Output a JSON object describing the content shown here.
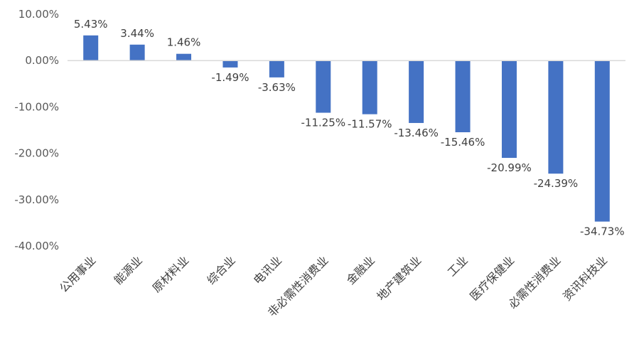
{
  "chart_data": {
    "type": "bar",
    "categories": [
      "公用事业",
      "能源业",
      "原材料业",
      "综合业",
      "电讯业",
      "非必需性消费业",
      "金融业",
      "地产建筑业",
      "工业",
      "医疗保健业",
      "必需性消费业",
      "资讯科技业"
    ],
    "values": [
      5.43,
      3.44,
      1.46,
      -1.49,
      -3.63,
      -11.25,
      -11.57,
      -13.46,
      -15.46,
      -20.99,
      -24.39,
      -34.73
    ],
    "data_labels": [
      "5.43%",
      "3.44%",
      "1.46%",
      "-1.49%",
      "-3.63%",
      "-11.25%",
      "-11.57%",
      "-13.46%",
      "-15.46%",
      "-20.99%",
      "-24.39%",
      "-34.73%"
    ],
    "y_ticks": [
      10,
      0,
      -10,
      -20,
      -30,
      -40
    ],
    "y_tick_labels": [
      "10.00%",
      "0.00%",
      "-10.00%",
      "-20.00%",
      "-30.00%",
      "-40.00%"
    ],
    "ylim": [
      -40,
      10
    ],
    "grid": false,
    "legend": "none",
    "bar_color": "#4472C4",
    "axis_color": "#D9D9D9"
  }
}
